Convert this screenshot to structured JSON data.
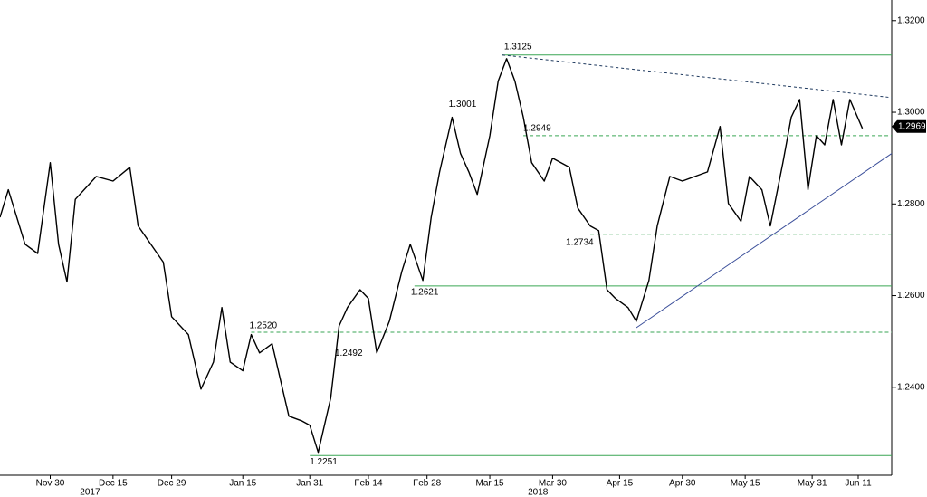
{
  "chart_data": {
    "type": "line",
    "color": "#000000",
    "x": [
      "2017-11-18",
      "2017-11-20",
      "2017-11-24",
      "2017-11-27",
      "2017-11-30",
      "2017-12-02",
      "2017-12-04",
      "2017-12-06",
      "2017-12-11",
      "2017-12-15",
      "2017-12-19",
      "2017-12-21",
      "2017-12-27",
      "2017-12-29",
      "2018-01-02",
      "2018-01-05",
      "2018-01-08",
      "2018-01-10",
      "2018-01-12",
      "2018-01-15",
      "2018-01-17",
      "2018-01-19",
      "2018-01-22",
      "2018-01-24",
      "2018-01-26",
      "2018-01-29",
      "2018-01-31",
      "2018-02-02",
      "2018-02-05",
      "2018-02-07",
      "2018-02-09",
      "2018-02-12",
      "2018-02-14",
      "2018-02-16",
      "2018-02-19",
      "2018-02-22",
      "2018-02-24",
      "2018-02-27",
      "2018-03-01",
      "2018-03-03",
      "2018-03-06",
      "2018-03-08",
      "2018-03-10",
      "2018-03-12",
      "2018-03-15",
      "2018-03-17",
      "2018-03-19",
      "2018-03-21",
      "2018-03-23",
      "2018-03-25",
      "2018-03-28",
      "2018-03-30",
      "2018-04-03",
      "2018-04-05",
      "2018-04-08",
      "2018-04-10",
      "2018-04-12",
      "2018-04-14",
      "2018-04-17",
      "2018-04-19",
      "2018-04-22",
      "2018-04-24",
      "2018-04-27",
      "2018-04-30",
      "2018-05-03",
      "2018-05-06",
      "2018-05-09",
      "2018-05-11",
      "2018-05-14",
      "2018-05-16",
      "2018-05-19",
      "2018-05-21",
      "2018-05-24",
      "2018-05-26",
      "2018-05-28",
      "2018-05-30",
      "2018-06-01",
      "2018-06-03",
      "2018-06-05",
      "2018-06-07",
      "2018-06-09",
      "2018-06-12"
    ],
    "values": [
      1.2771,
      1.2831,
      1.2712,
      1.2692,
      1.289,
      1.2712,
      1.263,
      1.281,
      1.286,
      1.285,
      1.288,
      1.2752,
      1.2673,
      1.2554,
      1.2515,
      1.2396,
      1.2455,
      1.2574,
      1.2455,
      1.2436,
      1.2515,
      1.2475,
      1.2495,
      1.2416,
      1.2337,
      1.2327,
      1.2317,
      1.2258,
      1.2376,
      1.2534,
      1.2574,
      1.2613,
      1.2594,
      1.2475,
      1.2544,
      1.2653,
      1.2712,
      1.2633,
      1.2771,
      1.287,
      1.2989,
      1.291,
      1.287,
      1.2821,
      1.2949,
      1.3068,
      1.3117,
      1.3068,
      1.2989,
      1.289,
      1.285,
      1.29,
      1.288,
      1.2791,
      1.2752,
      1.2742,
      1.2613,
      1.2594,
      1.2574,
      1.2544,
      1.2633,
      1.2752,
      1.286,
      1.285,
      1.286,
      1.287,
      1.2969,
      1.2801,
      1.2762,
      1.286,
      1.2831,
      1.2752,
      1.289,
      1.2989,
      1.3028,
      1.2831,
      1.2949,
      1.2929,
      1.3028,
      1.2929,
      1.3028,
      1.2965
    ],
    "xlim": [
      "2017-11-18",
      "2018-06-19"
    ],
    "xticks": [
      {
        "value": "2017-11-30",
        "label": "Nov 30"
      },
      {
        "value": "2017-12-15",
        "label": "Dec 15"
      },
      {
        "value": "2017-12-29",
        "label": "Dec 29"
      },
      {
        "value": "2018-01-15",
        "label": "Jan 15"
      },
      {
        "value": "2018-01-31",
        "label": "Jan 31"
      },
      {
        "value": "2018-02-14",
        "label": "Feb 14"
      },
      {
        "value": "2018-02-28",
        "label": "Feb 28"
      },
      {
        "value": "2018-03-15",
        "label": "Mar 15"
      },
      {
        "value": "2018-03-30",
        "label": "Mar 30"
      },
      {
        "value": "2018-04-15",
        "label": "Apr 15"
      },
      {
        "value": "2018-04-30",
        "label": "Apr 30"
      },
      {
        "value": "2018-05-15",
        "label": "May 15"
      },
      {
        "value": "2018-05-31",
        "label": "May 31"
      },
      {
        "value": "2018-06-11",
        "label": "Jun 11"
      }
    ],
    "years": [
      "2017",
      "2018"
    ],
    "ylim": [
      1.2208,
      1.3245
    ],
    "yticks": [
      {
        "value": 1.24,
        "label": "1.2400"
      },
      {
        "value": 1.26,
        "label": "1.2600"
      },
      {
        "value": 1.28,
        "label": "1.2800"
      },
      {
        "value": 1.3,
        "label": "1.3000"
      },
      {
        "value": 1.32,
        "label": "1.3200"
      }
    ],
    "last_price": 1.2969,
    "levels": [
      {
        "value": 1.3125,
        "date": "2018-03-18",
        "line": "solid"
      },
      {
        "value": 1.3001,
        "date": "2018-03-08",
        "line": "none"
      },
      {
        "value": 1.2949,
        "date": "2018-03-23",
        "line": "dashed"
      },
      {
        "value": 1.2734,
        "date": "2018-04-08",
        "line": "dashed"
      },
      {
        "value": 1.2621,
        "date": "2018-02-25",
        "line": "solid"
      },
      {
        "value": 1.252,
        "label": "1.2520",
        "date": "2018-01-17",
        "line": "dashed"
      },
      {
        "value": 1.2492,
        "date": "2018-02-06",
        "line": "none"
      },
      {
        "value": 1.2251,
        "date": "2018-01-31",
        "line": "solid"
      }
    ],
    "level_color": "#3aa655",
    "trendlines": [
      {
        "from": [
          "2018-03-18",
          1.3125
        ],
        "to": [
          "2018-06-19",
          1.3032
        ],
        "style": "dashed",
        "color": "#1f3a5f"
      },
      {
        "from": [
          "2018-04-19",
          1.253
        ],
        "to": [
          "2018-06-19",
          1.291
        ],
        "style": "solid",
        "color": "#3b4f9a"
      }
    ]
  }
}
